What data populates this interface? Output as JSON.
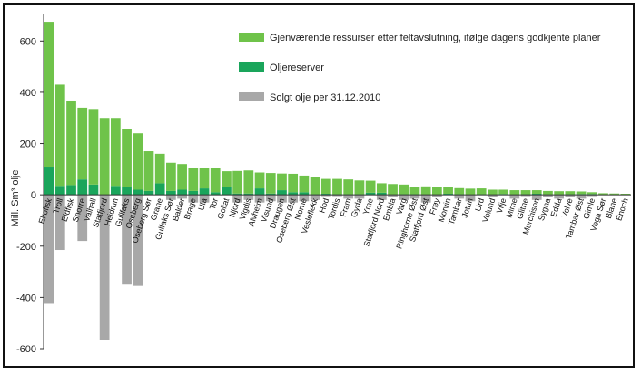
{
  "chart_data": {
    "type": "bar",
    "title": "",
    "xlabel": "",
    "ylabel": "Mill. Sm³ olje",
    "ylim": [
      -600,
      700
    ],
    "yticks": [
      -600,
      -400,
      -200,
      0,
      200,
      400,
      600
    ],
    "grid": false,
    "legend_position": "top-right",
    "stacked": true,
    "categories": [
      "Ekofisk",
      "Troll",
      "Eldfisk",
      "Snorre",
      "Valhall",
      "Statfjord",
      "Heidrun",
      "Gullfaks",
      "Oseberg",
      "Oseberg Sør",
      "Grane",
      "Gulfaks Sør",
      "Balder",
      "Brage",
      "Ula",
      "Tor",
      "Goliat",
      "Njord",
      "Vigdis",
      "Alvheim",
      "Visund",
      "Draugen",
      "Oseberg Øst",
      "Norne",
      "Vesleflekk",
      "Hod",
      "Tordis",
      "Fram",
      "Gyda",
      "Yme",
      "Statfjord Nord",
      "Embla",
      "Varg",
      "Ringhorne Øst",
      "Statfjord Øst",
      "Frøy",
      "Morvin",
      "Tambar",
      "Jotun",
      "Urd",
      "Volund",
      "Vilje",
      "Mime",
      "Glitne",
      "Murchison",
      "Sygna",
      "Edda",
      "Volve",
      "Tambar Øst",
      "Gimle",
      "Vega Sør",
      "Blane",
      "Enoch"
    ],
    "series": [
      {
        "name": "Gjenværende ressurser etter feltavslutning, ifølge dagens godkjente planer",
        "color": "#6fc34a",
        "values": [
          565,
          395,
          330,
          280,
          295,
          300,
          265,
          225,
          220,
          155,
          115,
          110,
          100,
          90,
          80,
          95,
          62,
          88,
          90,
          62,
          80,
          65,
          72,
          65,
          68,
          58,
          60,
          58,
          54,
          47,
          37,
          42,
          38,
          30,
          33,
          32,
          25,
          24,
          24,
          23,
          20,
          17,
          18,
          16,
          14,
          14,
          13,
          12,
          10,
          7,
          6,
          5,
          4
        ]
      },
      {
        "name": "Oljereserver",
        "color": "#1aa55b",
        "values": [
          110,
          35,
          38,
          60,
          40,
          0,
          35,
          30,
          20,
          15,
          45,
          15,
          20,
          15,
          25,
          10,
          30,
          5,
          5,
          25,
          5,
          18,
          10,
          10,
          2,
          4,
          2,
          2,
          2,
          8,
          8,
          0,
          2,
          2,
          0,
          0,
          4,
          2,
          0,
          2,
          0,
          3,
          0,
          2,
          4,
          1,
          1,
          2,
          3,
          3,
          0,
          0,
          0
        ]
      },
      {
        "name": "Solgt olje per 31.12.2010",
        "color": "#a8a8a8",
        "values": [
          -425,
          -215,
          0,
          -180,
          0,
          -565,
          0,
          -350,
          -355,
          0,
          0,
          -20,
          -15,
          -30,
          -30,
          0,
          0,
          -30,
          -20,
          -30,
          -25,
          -30,
          -30,
          -25,
          -20,
          -5,
          -5,
          -15,
          -15,
          0,
          -20,
          -10,
          -20,
          -15,
          -30,
          -10,
          0,
          -15,
          -25,
          0,
          -10,
          0,
          -15,
          -5,
          -20,
          -10,
          -15,
          -10,
          -15,
          -5,
          0,
          0,
          0
        ]
      }
    ],
    "legend": [
      {
        "label": "Gjenværende ressurser etter feltavslutning, ifølge dagens godkjente planer",
        "color": "#6fc34a"
      },
      {
        "label": "Oljereserver",
        "color": "#1aa55b"
      },
      {
        "label": "Solgt olje per 31.12.2010",
        "color": "#a8a8a8"
      }
    ]
  }
}
